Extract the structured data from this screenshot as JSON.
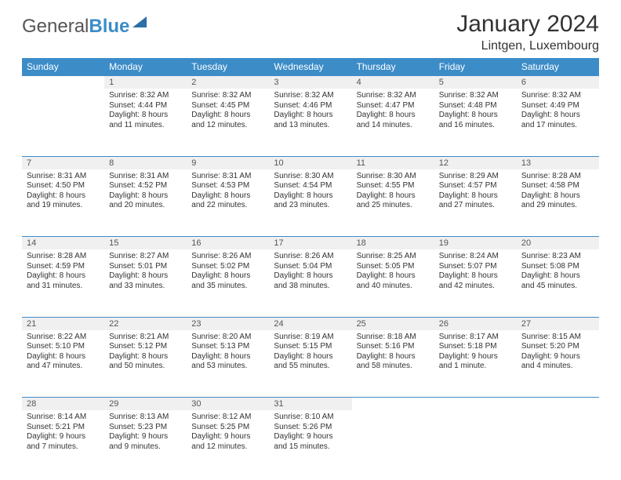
{
  "brand": {
    "gray": "General",
    "blue": "Blue"
  },
  "title": "January 2024",
  "location": "Lintgen, Luxembourg",
  "colors": {
    "header_bg": "#3c8cc8",
    "daynum_bg": "#f0f0f0",
    "rule": "#3c8cc8"
  },
  "weekdays": [
    "Sunday",
    "Monday",
    "Tuesday",
    "Wednesday",
    "Thursday",
    "Friday",
    "Saturday"
  ],
  "weeks": [
    [
      null,
      {
        "n": "1",
        "a": "Sunrise: 8:32 AM",
        "b": "Sunset: 4:44 PM",
        "c": "Daylight: 8 hours",
        "d": "and 11 minutes."
      },
      {
        "n": "2",
        "a": "Sunrise: 8:32 AM",
        "b": "Sunset: 4:45 PM",
        "c": "Daylight: 8 hours",
        "d": "and 12 minutes."
      },
      {
        "n": "3",
        "a": "Sunrise: 8:32 AM",
        "b": "Sunset: 4:46 PM",
        "c": "Daylight: 8 hours",
        "d": "and 13 minutes."
      },
      {
        "n": "4",
        "a": "Sunrise: 8:32 AM",
        "b": "Sunset: 4:47 PM",
        "c": "Daylight: 8 hours",
        "d": "and 14 minutes."
      },
      {
        "n": "5",
        "a": "Sunrise: 8:32 AM",
        "b": "Sunset: 4:48 PM",
        "c": "Daylight: 8 hours",
        "d": "and 16 minutes."
      },
      {
        "n": "6",
        "a": "Sunrise: 8:32 AM",
        "b": "Sunset: 4:49 PM",
        "c": "Daylight: 8 hours",
        "d": "and 17 minutes."
      }
    ],
    [
      {
        "n": "7",
        "a": "Sunrise: 8:31 AM",
        "b": "Sunset: 4:50 PM",
        "c": "Daylight: 8 hours",
        "d": "and 19 minutes."
      },
      {
        "n": "8",
        "a": "Sunrise: 8:31 AM",
        "b": "Sunset: 4:52 PM",
        "c": "Daylight: 8 hours",
        "d": "and 20 minutes."
      },
      {
        "n": "9",
        "a": "Sunrise: 8:31 AM",
        "b": "Sunset: 4:53 PM",
        "c": "Daylight: 8 hours",
        "d": "and 22 minutes."
      },
      {
        "n": "10",
        "a": "Sunrise: 8:30 AM",
        "b": "Sunset: 4:54 PM",
        "c": "Daylight: 8 hours",
        "d": "and 23 minutes."
      },
      {
        "n": "11",
        "a": "Sunrise: 8:30 AM",
        "b": "Sunset: 4:55 PM",
        "c": "Daylight: 8 hours",
        "d": "and 25 minutes."
      },
      {
        "n": "12",
        "a": "Sunrise: 8:29 AM",
        "b": "Sunset: 4:57 PM",
        "c": "Daylight: 8 hours",
        "d": "and 27 minutes."
      },
      {
        "n": "13",
        "a": "Sunrise: 8:28 AM",
        "b": "Sunset: 4:58 PM",
        "c": "Daylight: 8 hours",
        "d": "and 29 minutes."
      }
    ],
    [
      {
        "n": "14",
        "a": "Sunrise: 8:28 AM",
        "b": "Sunset: 4:59 PM",
        "c": "Daylight: 8 hours",
        "d": "and 31 minutes."
      },
      {
        "n": "15",
        "a": "Sunrise: 8:27 AM",
        "b": "Sunset: 5:01 PM",
        "c": "Daylight: 8 hours",
        "d": "and 33 minutes."
      },
      {
        "n": "16",
        "a": "Sunrise: 8:26 AM",
        "b": "Sunset: 5:02 PM",
        "c": "Daylight: 8 hours",
        "d": "and 35 minutes."
      },
      {
        "n": "17",
        "a": "Sunrise: 8:26 AM",
        "b": "Sunset: 5:04 PM",
        "c": "Daylight: 8 hours",
        "d": "and 38 minutes."
      },
      {
        "n": "18",
        "a": "Sunrise: 8:25 AM",
        "b": "Sunset: 5:05 PM",
        "c": "Daylight: 8 hours",
        "d": "and 40 minutes."
      },
      {
        "n": "19",
        "a": "Sunrise: 8:24 AM",
        "b": "Sunset: 5:07 PM",
        "c": "Daylight: 8 hours",
        "d": "and 42 minutes."
      },
      {
        "n": "20",
        "a": "Sunrise: 8:23 AM",
        "b": "Sunset: 5:08 PM",
        "c": "Daylight: 8 hours",
        "d": "and 45 minutes."
      }
    ],
    [
      {
        "n": "21",
        "a": "Sunrise: 8:22 AM",
        "b": "Sunset: 5:10 PM",
        "c": "Daylight: 8 hours",
        "d": "and 47 minutes."
      },
      {
        "n": "22",
        "a": "Sunrise: 8:21 AM",
        "b": "Sunset: 5:12 PM",
        "c": "Daylight: 8 hours",
        "d": "and 50 minutes."
      },
      {
        "n": "23",
        "a": "Sunrise: 8:20 AM",
        "b": "Sunset: 5:13 PM",
        "c": "Daylight: 8 hours",
        "d": "and 53 minutes."
      },
      {
        "n": "24",
        "a": "Sunrise: 8:19 AM",
        "b": "Sunset: 5:15 PM",
        "c": "Daylight: 8 hours",
        "d": "and 55 minutes."
      },
      {
        "n": "25",
        "a": "Sunrise: 8:18 AM",
        "b": "Sunset: 5:16 PM",
        "c": "Daylight: 8 hours",
        "d": "and 58 minutes."
      },
      {
        "n": "26",
        "a": "Sunrise: 8:17 AM",
        "b": "Sunset: 5:18 PM",
        "c": "Daylight: 9 hours",
        "d": "and 1 minute."
      },
      {
        "n": "27",
        "a": "Sunrise: 8:15 AM",
        "b": "Sunset: 5:20 PM",
        "c": "Daylight: 9 hours",
        "d": "and 4 minutes."
      }
    ],
    [
      {
        "n": "28",
        "a": "Sunrise: 8:14 AM",
        "b": "Sunset: 5:21 PM",
        "c": "Daylight: 9 hours",
        "d": "and 7 minutes."
      },
      {
        "n": "29",
        "a": "Sunrise: 8:13 AM",
        "b": "Sunset: 5:23 PM",
        "c": "Daylight: 9 hours",
        "d": "and 9 minutes."
      },
      {
        "n": "30",
        "a": "Sunrise: 8:12 AM",
        "b": "Sunset: 5:25 PM",
        "c": "Daylight: 9 hours",
        "d": "and 12 minutes."
      },
      {
        "n": "31",
        "a": "Sunrise: 8:10 AM",
        "b": "Sunset: 5:26 PM",
        "c": "Daylight: 9 hours",
        "d": "and 15 minutes."
      },
      null,
      null,
      null
    ]
  ]
}
